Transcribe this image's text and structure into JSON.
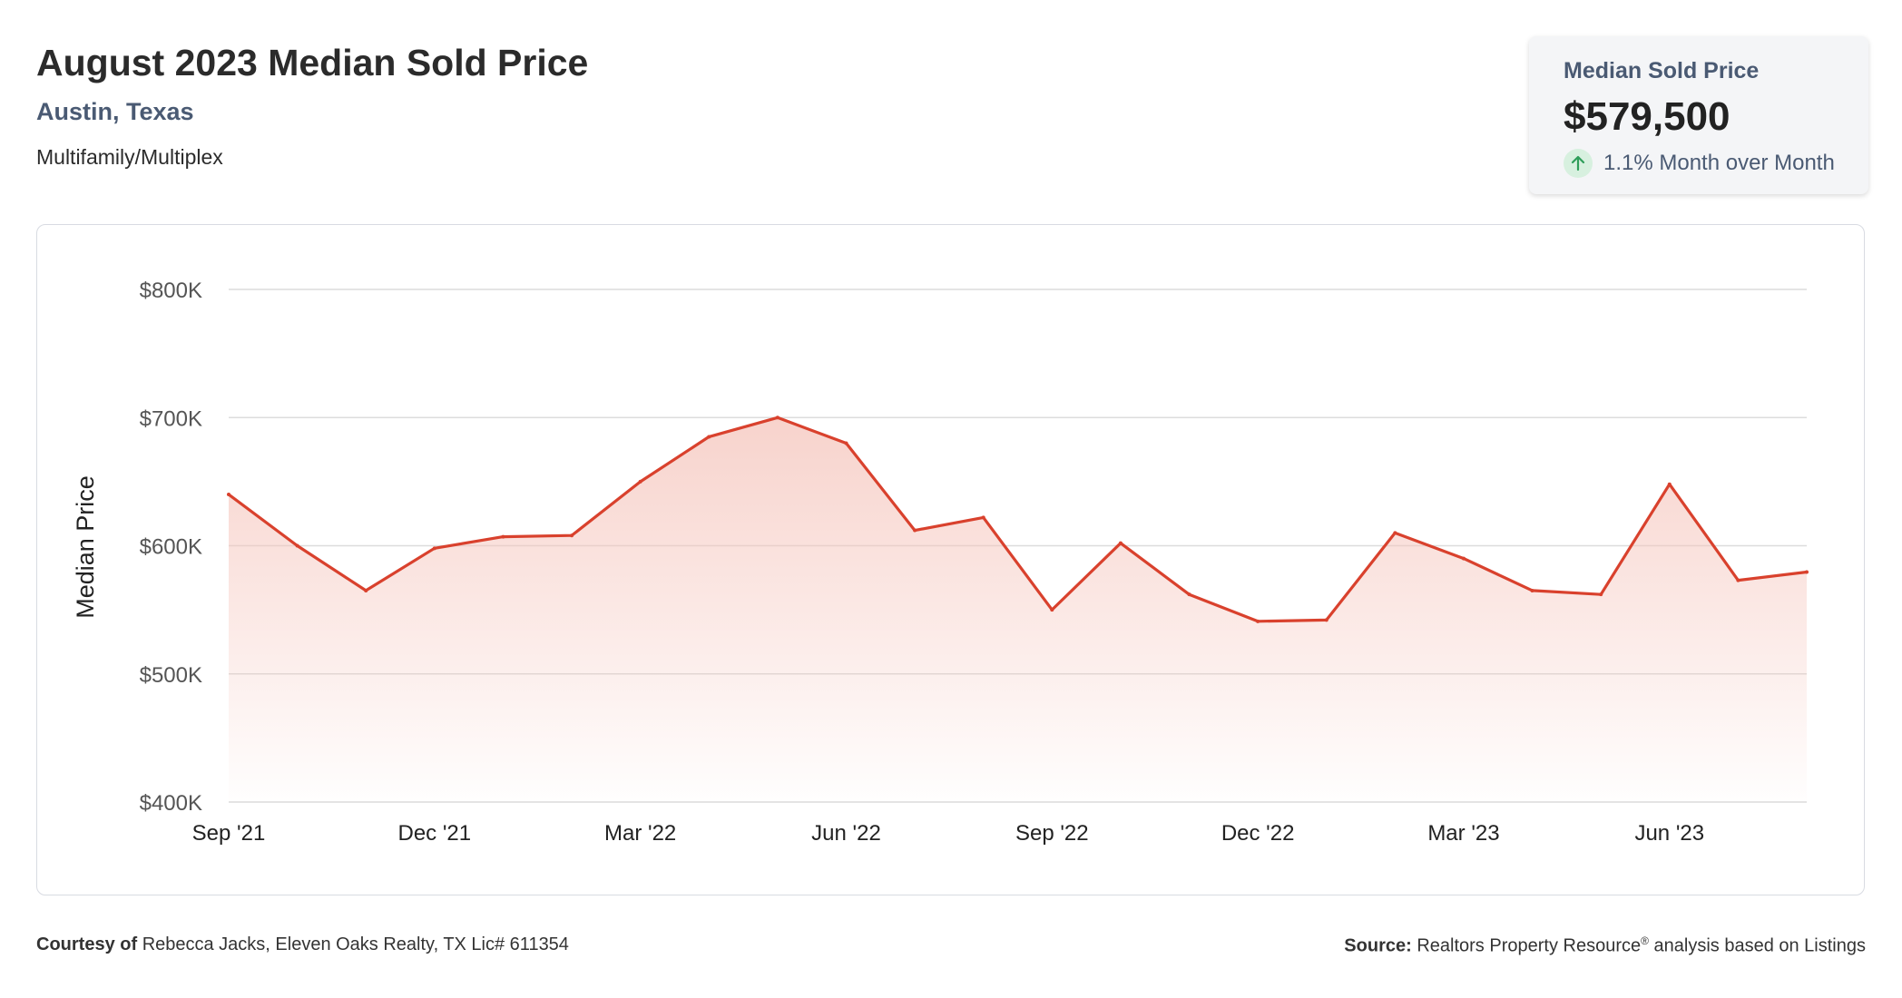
{
  "header": {
    "title": "August 2023 Median Sold Price",
    "location": "Austin, Texas",
    "property_type": "Multifamily/Multiplex"
  },
  "stat_card": {
    "label": "Median Sold Price",
    "value": "$579,500",
    "change": "1.1% Month over Month",
    "direction_icon": "arrow-up-icon",
    "positive_color": "#2f9e5a"
  },
  "footer": {
    "courtesy_label": "Courtesy of",
    "courtesy_text": "Rebecca Jacks, Eleven Oaks Realty, TX Lic# 611354",
    "source_label": "Source:",
    "source_name": "Realtors Property Resource",
    "source_mark": "®",
    "source_text": " analysis based on Listings"
  },
  "colors": {
    "line": "#d9412d",
    "fill": "#f5c4bb",
    "grid": "#dcdcdc"
  },
  "chart_data": {
    "type": "area",
    "title": "",
    "xlabel": "",
    "ylabel": "Median Price",
    "ylim": [
      400000,
      800000
    ],
    "y_ticks": [
      400000,
      500000,
      600000,
      700000,
      800000
    ],
    "y_tick_labels": [
      "$400K",
      "$500K",
      "$600K",
      "$700K",
      "$800K"
    ],
    "x_tick_labels": [
      "Sep '21",
      "Dec '21",
      "Mar '22",
      "Jun '22",
      "Sep '22",
      "Dec '22",
      "Mar '23",
      "Jun '23"
    ],
    "x_tick_indices": [
      0,
      3,
      6,
      9,
      12,
      15,
      18,
      21
    ],
    "grid": true,
    "legend": "none",
    "x": [
      "Sep '21",
      "Oct '21",
      "Nov '21",
      "Dec '21",
      "Jan '22",
      "Feb '22",
      "Mar '22",
      "Apr '22",
      "May '22",
      "Jun '22",
      "Jul '22",
      "Aug '22",
      "Sep '22",
      "Oct '22",
      "Nov '22",
      "Dec '22",
      "Jan '23",
      "Feb '23",
      "Mar '23",
      "Apr '23",
      "May '23",
      "Jun '23",
      "Jul '23",
      "Aug '23"
    ],
    "series": [
      {
        "values": [
          640000,
          600000,
          565000,
          598000,
          607000,
          608000,
          650000,
          685000,
          700000,
          680000,
          612000,
          622000,
          550000,
          602000,
          562000,
          541000,
          542000,
          610000,
          590000,
          565000,
          562000,
          648000,
          573000,
          579500
        ]
      }
    ]
  }
}
